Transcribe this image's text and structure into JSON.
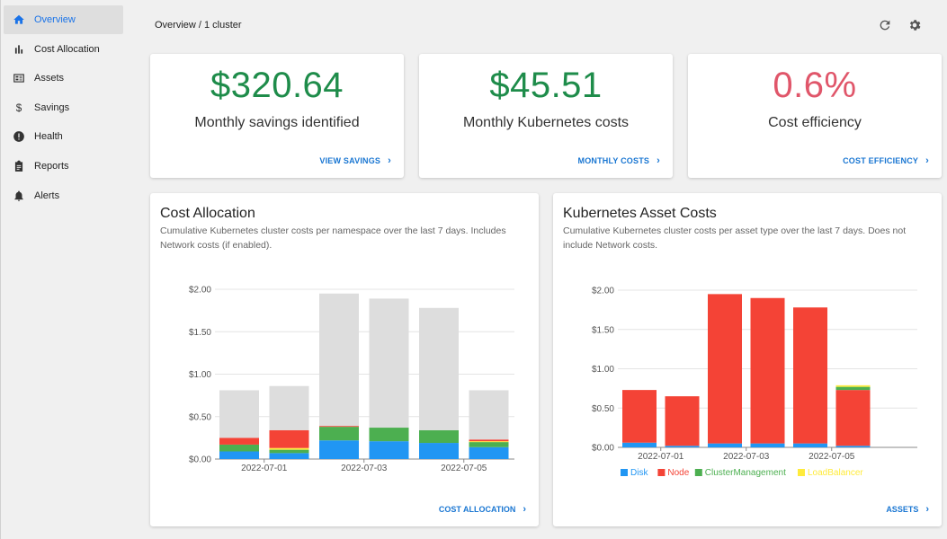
{
  "sidebar": {
    "items": [
      {
        "label": "Overview",
        "icon": "home-icon"
      },
      {
        "label": "Cost Allocation",
        "icon": "bar-chart-icon"
      },
      {
        "label": "Assets",
        "icon": "assets-icon"
      },
      {
        "label": "Savings",
        "icon": "dollar-icon"
      },
      {
        "label": "Health",
        "icon": "alert-circle-icon"
      },
      {
        "label": "Reports",
        "icon": "clipboard-icon"
      },
      {
        "label": "Alerts",
        "icon": "bell-icon"
      }
    ]
  },
  "header": {
    "breadcrumb": "Overview / 1 cluster"
  },
  "kpis": [
    {
      "value": "$320.64",
      "label": "Monthly savings identified",
      "link": "VIEW SAVINGS",
      "color": "#1e8c4a"
    },
    {
      "value": "$45.51",
      "label": "Monthly Kubernetes costs",
      "link": "MONTHLY COSTS",
      "color": "#1e8c4a"
    },
    {
      "value": "0.6%",
      "label": "Cost efficiency",
      "link": "COST EFFICIENCY",
      "color": "#e0566a"
    }
  ],
  "allocation": {
    "title": "Cost Allocation",
    "description": "Cumulative Kubernetes cluster costs per namespace over the last 7 days. Includes Network costs (if enabled).",
    "link": "COST ALLOCATION"
  },
  "assets": {
    "title": "Kubernetes Asset Costs",
    "description": "Cumulative Kubernetes cluster costs per asset type over the last 7 days. Does not include Network costs.",
    "link": "ASSETS"
  },
  "chart_data": [
    {
      "type": "bar",
      "stacked": true,
      "categories": [
        "",
        "2022-07-01",
        "",
        "2022-07-03",
        "",
        "2022-07-05"
      ],
      "ylim": [
        0,
        2
      ],
      "ytick_labels": [
        "$0.00",
        "$0.50",
        "$1.00",
        "$1.50",
        "$2.00"
      ],
      "series": [
        {
          "color": "#2196f3",
          "values": [
            0.09,
            0.07,
            0.22,
            0.21,
            0.19,
            0.14
          ]
        },
        {
          "color": "#4caf50",
          "values": [
            0.08,
            0.04,
            0.16,
            0.16,
            0.15,
            0.06
          ]
        },
        {
          "color": "#ffeb3b",
          "values": [
            0.0,
            0.02,
            0.0,
            0.0,
            0.0,
            0.01
          ]
        },
        {
          "color": "#f44336",
          "values": [
            0.08,
            0.21,
            0.01,
            0.0,
            0.0,
            0.02
          ]
        },
        {
          "color": "#dddddd",
          "values": [
            0.56,
            0.52,
            1.56,
            1.52,
            1.44,
            0.58
          ]
        }
      ]
    },
    {
      "type": "bar",
      "stacked": true,
      "categories": [
        "",
        "2022-07-01",
        "",
        "2022-07-03",
        "",
        "2022-07-05"
      ],
      "ylim": [
        0,
        2
      ],
      "ytick_labels": [
        "$0.00",
        "$0.50",
        "$1.00",
        "$1.50",
        "$2.00"
      ],
      "series": [
        {
          "name": "Disk",
          "color": "#2196f3",
          "values": [
            0.06,
            0.02,
            0.05,
            0.05,
            0.05,
            0.02
          ]
        },
        {
          "name": "Node",
          "color": "#f44336",
          "values": [
            0.67,
            0.63,
            1.9,
            1.85,
            1.73,
            0.71
          ]
        },
        {
          "name": "ClusterManagement",
          "color": "#4caf50",
          "values": [
            0.0,
            0.0,
            0.0,
            0.0,
            0.0,
            0.04
          ]
        },
        {
          "name": "LoadBalancer",
          "color": "#ffeb3b",
          "values": [
            0.0,
            0.0,
            0.0,
            0.0,
            0.0,
            0.02
          ]
        }
      ]
    }
  ]
}
